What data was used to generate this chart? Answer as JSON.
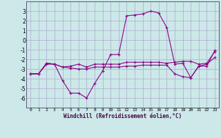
{
  "xlabel": "Windchill (Refroidissement éolien,°C)",
  "background_color": "#cce8e8",
  "grid_color": "#aaaacc",
  "line_color": "#880088",
  "x": [
    0,
    1,
    2,
    3,
    4,
    5,
    6,
    7,
    8,
    9,
    10,
    11,
    12,
    13,
    14,
    15,
    16,
    17,
    18,
    19,
    20,
    21,
    22,
    23
  ],
  "line1": [
    -3.5,
    -3.5,
    -2.5,
    -2.5,
    -4.2,
    -5.5,
    -5.5,
    -6.0,
    -4.5,
    -3.2,
    -1.5,
    -1.5,
    2.5,
    2.6,
    2.7,
    3.0,
    2.8,
    1.3,
    -2.5,
    -2.4,
    -3.9,
    -2.7,
    -2.7,
    -1.1
  ],
  "line2": [
    -3.5,
    -3.5,
    -2.4,
    -2.5,
    -2.8,
    -2.7,
    -2.5,
    -2.8,
    -2.5,
    -2.5,
    -2.5,
    -2.5,
    -2.3,
    -2.3,
    -2.3,
    -2.3,
    -2.3,
    -2.4,
    -2.3,
    -2.2,
    -2.2,
    -2.5,
    -2.4,
    -1.2
  ],
  "line3": [
    -3.5,
    -3.5,
    -2.4,
    -2.5,
    -2.8,
    -2.9,
    -3.0,
    -3.0,
    -2.8,
    -2.8,
    -2.8,
    -2.8,
    -2.7,
    -2.7,
    -2.6,
    -2.6,
    -2.6,
    -2.6,
    -3.5,
    -3.8,
    -3.9,
    -2.7,
    -2.5,
    -1.8
  ],
  "ylim": [
    -7,
    4
  ],
  "xlim": [
    -0.5,
    23.5
  ],
  "yticks": [
    3,
    2,
    1,
    0,
    -1,
    -2,
    -3,
    -4,
    -5,
    -6
  ],
  "xticks": [
    0,
    1,
    2,
    3,
    4,
    5,
    6,
    7,
    8,
    9,
    10,
    11,
    12,
    13,
    14,
    15,
    16,
    17,
    18,
    19,
    20,
    21,
    22,
    23
  ]
}
